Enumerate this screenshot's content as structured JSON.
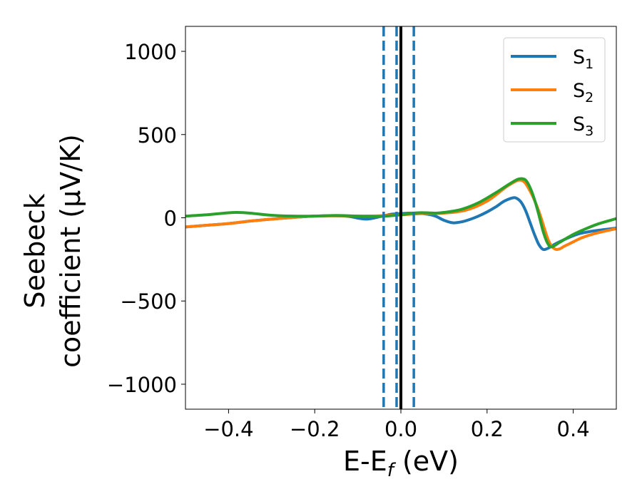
{
  "chart_data": {
    "type": "line",
    "xlabel": {
      "main": "E-E",
      "sub": "f",
      "unit": " (eV)"
    },
    "ylabel": {
      "line1": "Seebeck",
      "line2": "coefficient  (μV/K)"
    },
    "xlim": [
      -0.5,
      0.5
    ],
    "ylim": [
      -1150,
      1150
    ],
    "xticks": [
      -0.4,
      -0.2,
      0.0,
      0.2,
      0.4
    ],
    "xtick_labels": [
      "−0.4",
      "−0.2",
      "0.0",
      "0.2",
      "0.4"
    ],
    "yticks": [
      -1000,
      -500,
      0,
      500,
      1000
    ],
    "ytick_labels": [
      "−1000",
      "−500",
      "0",
      "500",
      "1000"
    ],
    "legend_position": "top-right",
    "series": [
      {
        "name": "S",
        "subscript": "1",
        "color": "#1f77b4",
        "x": [
          -0.5,
          -0.45,
          -0.4,
          -0.35,
          -0.3,
          -0.25,
          -0.2,
          -0.15,
          -0.12,
          -0.1,
          -0.08,
          -0.06,
          -0.04,
          -0.02,
          0.0,
          0.02,
          0.04,
          0.06,
          0.08,
          0.1,
          0.12,
          0.14,
          0.16,
          0.18,
          0.2,
          0.22,
          0.24,
          0.26,
          0.27,
          0.28,
          0.29,
          0.3,
          0.31,
          0.32,
          0.33,
          0.34,
          0.35,
          0.36,
          0.38,
          0.4,
          0.42,
          0.45,
          0.5
        ],
        "y": [
          -55,
          -45,
          -35,
          -20,
          -8,
          2,
          10,
          12,
          8,
          -2,
          -8,
          0,
          12,
          22,
          25,
          28,
          28,
          22,
          10,
          -15,
          -30,
          -25,
          -10,
          10,
          35,
          65,
          100,
          120,
          115,
          90,
          40,
          -30,
          -100,
          -160,
          -190,
          -185,
          -170,
          -155,
          -130,
          -108,
          -92,
          -78,
          -62
        ]
      },
      {
        "name": "S",
        "subscript": "2",
        "color": "#ff7f0e",
        "x": [
          -0.5,
          -0.45,
          -0.4,
          -0.35,
          -0.3,
          -0.25,
          -0.2,
          -0.15,
          -0.1,
          -0.05,
          0.0,
          0.05,
          0.1,
          0.15,
          0.2,
          0.25,
          0.28,
          0.3,
          0.32,
          0.34,
          0.35,
          0.36,
          0.37,
          0.38,
          0.4,
          0.42,
          0.45,
          0.5
        ],
        "y": [
          -55,
          -45,
          -35,
          -20,
          -8,
          2,
          10,
          12,
          10,
          12,
          18,
          25,
          28,
          45,
          100,
          195,
          225,
          160,
          40,
          -120,
          -170,
          -190,
          -185,
          -170,
          -145,
          -120,
          -95,
          -65
        ]
      },
      {
        "name": "S",
        "subscript": "3",
        "color": "#2ca02c",
        "x": [
          -0.5,
          -0.45,
          -0.4,
          -0.38,
          -0.35,
          -0.3,
          -0.25,
          -0.2,
          -0.15,
          -0.1,
          -0.05,
          0.0,
          0.02,
          0.04,
          0.06,
          0.08,
          0.1,
          0.14,
          0.18,
          0.22,
          0.25,
          0.27,
          0.28,
          0.29,
          0.3,
          0.31,
          0.32,
          0.33,
          0.34,
          0.35,
          0.37,
          0.4,
          0.43,
          0.46,
          0.5
        ],
        "y": [
          10,
          18,
          30,
          32,
          28,
          15,
          10,
          10,
          14,
          10,
          8,
          18,
          25,
          30,
          30,
          28,
          32,
          50,
          90,
          150,
          200,
          230,
          235,
          225,
          180,
          110,
          20,
          -80,
          -150,
          -175,
          -145,
          -100,
          -65,
          -35,
          -5
        ]
      }
    ],
    "vlines": [
      {
        "x": -0.04,
        "style": "dashed",
        "color": "#1f77b4"
      },
      {
        "x": -0.01,
        "style": "dashed",
        "color": "#1f77b4"
      },
      {
        "x": 0.0,
        "style": "solid",
        "color": "#000000"
      },
      {
        "x": 0.03,
        "style": "dashed",
        "color": "#1f77b4"
      }
    ]
  }
}
